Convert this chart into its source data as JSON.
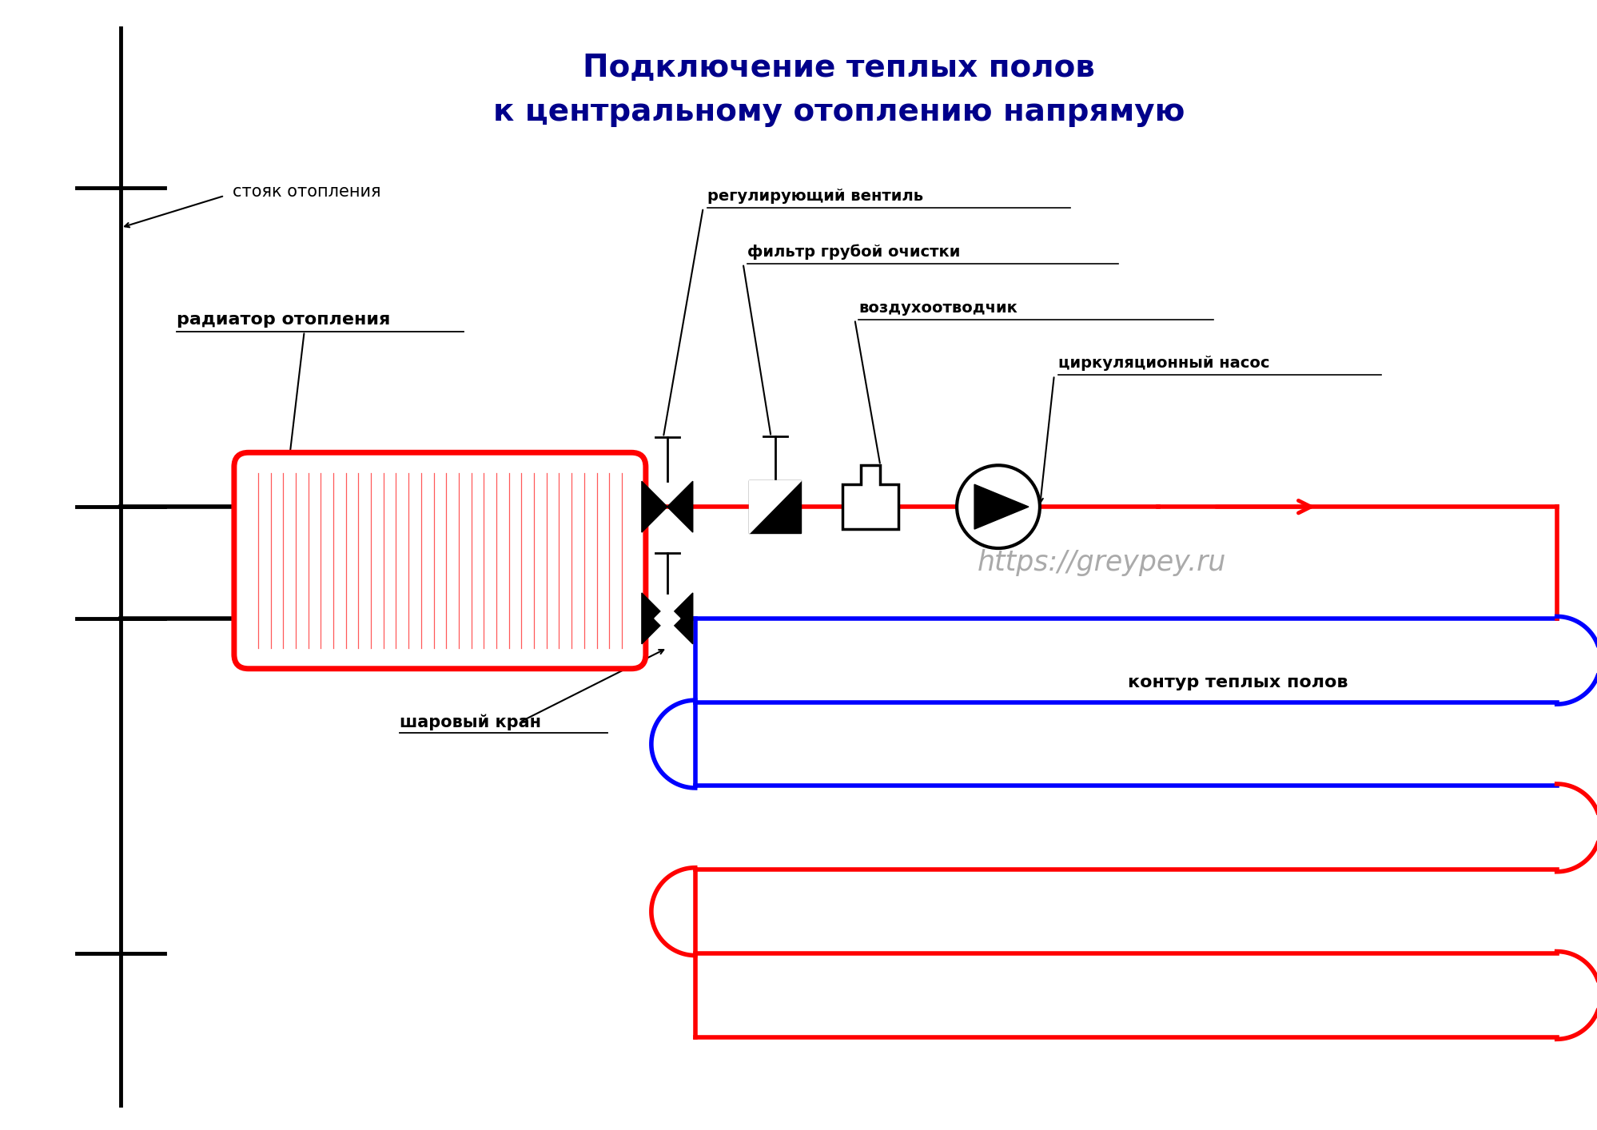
{
  "title_line1": "Подключение теплых полов",
  "title_line2": "к центральному отоплению напрямую",
  "title_color": "#00008B",
  "title_fontsize": 28,
  "bg_color": "#FFFFFF",
  "label_stoyak": "стояк отопления",
  "label_radiator": "радиатор отопления",
  "label_regvalve": "регулирующий вентиль",
  "label_filter": "фильтр грубой очистки",
  "label_airvent": "воздухоотводчик",
  "label_pump": "циркуляционный насос",
  "label_ballvalve": "шаровый кран",
  "label_contour": "контур теплых полов",
  "label_url": "https://greypey.ru",
  "red": "#FF0000",
  "blue": "#0000FF",
  "black": "#000000"
}
